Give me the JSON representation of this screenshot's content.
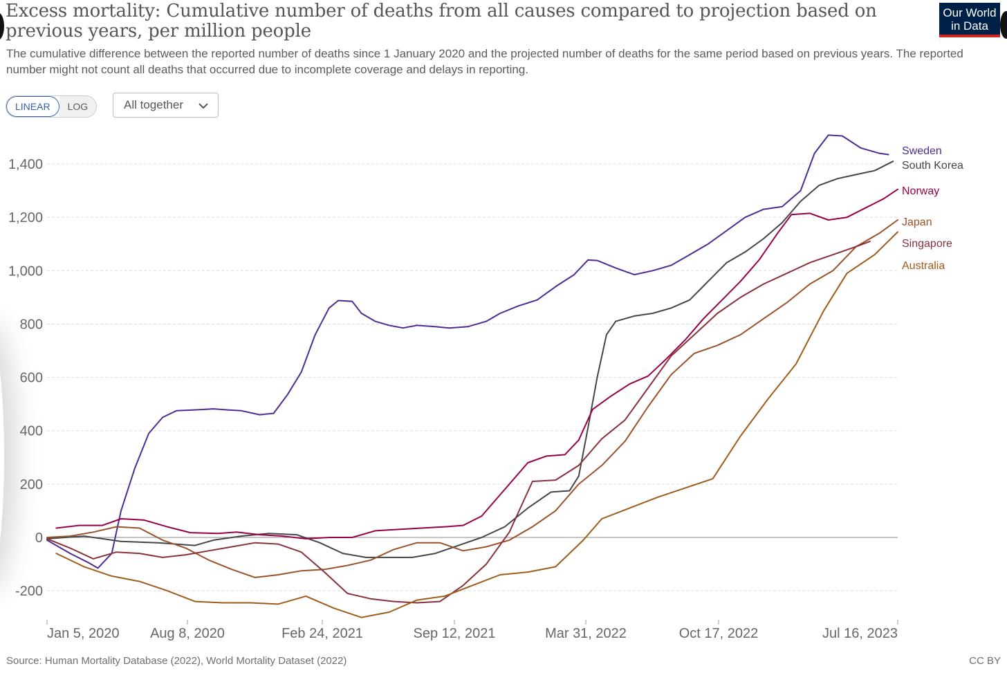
{
  "header": {
    "title": "Excess mortality: Cumulative number of deaths from all causes compared to projection based on previous years, per million people",
    "subtitle": "The cumulative difference between the reported number of deaths since 1 January 2020 and the projected number of deaths for the same period based on previous years. The reported number might not count all deaths that occurred due to incomplete coverage and delays in reporting.",
    "logo_text": "Our World in Data",
    "logo_colors": {
      "background": "#002147",
      "stripe": "#ce261e"
    }
  },
  "controls": {
    "scale_options": [
      "LINEAR",
      "LOG"
    ],
    "scale_selected": "LINEAR",
    "dropdown_label": "All together"
  },
  "footer": {
    "source": "Source: Human Mortality Database (2022), World Mortality Dataset (2022)",
    "license": "CC BY"
  },
  "chart_data": {
    "type": "line",
    "title": "Excess mortality: Cumulative number of deaths from all causes compared to projection based on previous years, per million people",
    "xlabel": "",
    "ylabel": "",
    "x_axis": "date",
    "x_ticks": [
      "Jan 5, 2020",
      "Aug 8, 2020",
      "Feb 24, 2021",
      "Sep 12, 2021",
      "Mar 31, 2022",
      "Oct 17, 2022",
      "Jul 16, 2023"
    ],
    "x_range": [
      "2020-01-05",
      "2023-07-16"
    ],
    "y_ticks": [
      -200,
      0,
      200,
      400,
      600,
      800,
      1000,
      1200,
      1400
    ],
    "ylim": [
      -300,
      1520
    ],
    "grid": "horizontal dashed",
    "legend": "line end labels, right",
    "series": [
      {
        "name": "Sweden",
        "color": "#4c2c92",
        "points": [
          [
            "2020-01-05",
            -10
          ],
          [
            "2020-02-09",
            -60
          ],
          [
            "2020-03-08",
            -95
          ],
          [
            "2020-03-22",
            -115
          ],
          [
            "2020-04-12",
            -60
          ],
          [
            "2020-04-26",
            100
          ],
          [
            "2020-05-17",
            260
          ],
          [
            "2020-06-07",
            390
          ],
          [
            "2020-06-28",
            450
          ],
          [
            "2020-07-19",
            475
          ],
          [
            "2020-08-16",
            478
          ],
          [
            "2020-09-13",
            482
          ],
          [
            "2020-10-04",
            478
          ],
          [
            "2020-10-25",
            475
          ],
          [
            "2020-11-22",
            460
          ],
          [
            "2020-12-13",
            465
          ],
          [
            "2021-01-03",
            535
          ],
          [
            "2021-01-24",
            620
          ],
          [
            "2021-02-14",
            760
          ],
          [
            "2021-03-07",
            860
          ],
          [
            "2021-03-21",
            888
          ],
          [
            "2021-04-11",
            885
          ],
          [
            "2021-04-25",
            840
          ],
          [
            "2021-05-16",
            810
          ],
          [
            "2021-06-06",
            795
          ],
          [
            "2021-06-27",
            785
          ],
          [
            "2021-07-18",
            795
          ],
          [
            "2021-08-15",
            790
          ],
          [
            "2021-09-05",
            785
          ],
          [
            "2021-10-03",
            790
          ],
          [
            "2021-10-31",
            810
          ],
          [
            "2021-11-21",
            840
          ],
          [
            "2021-12-19",
            868
          ],
          [
            "2022-01-16",
            890
          ],
          [
            "2022-02-13",
            940
          ],
          [
            "2022-03-13",
            985
          ],
          [
            "2022-04-03",
            1040
          ],
          [
            "2022-04-17",
            1038
          ],
          [
            "2022-05-15",
            1010
          ],
          [
            "2022-06-12",
            985
          ],
          [
            "2022-07-10",
            1000
          ],
          [
            "2022-08-07",
            1020
          ],
          [
            "2022-09-04",
            1060
          ],
          [
            "2022-10-02",
            1100
          ],
          [
            "2022-10-30",
            1150
          ],
          [
            "2022-11-27",
            1200
          ],
          [
            "2022-12-25",
            1230
          ],
          [
            "2023-01-22",
            1240
          ],
          [
            "2023-02-19",
            1300
          ],
          [
            "2023-03-12",
            1440
          ],
          [
            "2023-04-02",
            1508
          ],
          [
            "2023-04-23",
            1505
          ],
          [
            "2023-05-21",
            1460
          ],
          [
            "2023-06-18",
            1440
          ],
          [
            "2023-07-02",
            1435
          ]
        ]
      },
      {
        "name": "South Korea",
        "color": "#444444",
        "points": [
          [
            "2020-01-05",
            -5
          ],
          [
            "2020-03-01",
            5
          ],
          [
            "2020-04-26",
            -15
          ],
          [
            "2020-06-21",
            -20
          ],
          [
            "2020-08-16",
            -30
          ],
          [
            "2020-09-13",
            -10
          ],
          [
            "2020-10-25",
            5
          ],
          [
            "2020-12-06",
            15
          ],
          [
            "2021-01-17",
            10
          ],
          [
            "2021-02-21",
            -20
          ],
          [
            "2021-03-28",
            -60
          ],
          [
            "2021-05-02",
            -75
          ],
          [
            "2021-06-06",
            -75
          ],
          [
            "2021-07-11",
            -75
          ],
          [
            "2021-08-15",
            -60
          ],
          [
            "2021-09-19",
            -30
          ],
          [
            "2021-10-24",
            0
          ],
          [
            "2021-11-28",
            40
          ],
          [
            "2022-01-02",
            110
          ],
          [
            "2022-02-06",
            170
          ],
          [
            "2022-03-06",
            175
          ],
          [
            "2022-03-20",
            230
          ],
          [
            "2022-04-03",
            410
          ],
          [
            "2022-04-17",
            600
          ],
          [
            "2022-05-01",
            760
          ],
          [
            "2022-05-15",
            810
          ],
          [
            "2022-06-12",
            830
          ],
          [
            "2022-07-10",
            840
          ],
          [
            "2022-08-07",
            860
          ],
          [
            "2022-09-04",
            890
          ],
          [
            "2022-10-02",
            960
          ],
          [
            "2022-10-30",
            1030
          ],
          [
            "2022-11-27",
            1070
          ],
          [
            "2022-12-25",
            1120
          ],
          [
            "2023-01-22",
            1180
          ],
          [
            "2023-02-19",
            1260
          ],
          [
            "2023-03-19",
            1320
          ],
          [
            "2023-04-16",
            1345
          ],
          [
            "2023-05-14",
            1360
          ],
          [
            "2023-06-11",
            1375
          ],
          [
            "2023-07-09",
            1410
          ]
        ]
      },
      {
        "name": "Norway",
        "color": "#970046",
        "points": [
          [
            "2020-01-19",
            35
          ],
          [
            "2020-02-23",
            45
          ],
          [
            "2020-03-29",
            45
          ],
          [
            "2020-04-26",
            70
          ],
          [
            "2020-05-31",
            65
          ],
          [
            "2020-07-05",
            40
          ],
          [
            "2020-08-09",
            18
          ],
          [
            "2020-09-20",
            15
          ],
          [
            "2020-10-18",
            20
          ],
          [
            "2020-11-22",
            10
          ],
          [
            "2020-12-27",
            5
          ],
          [
            "2021-01-31",
            -5
          ],
          [
            "2021-03-07",
            0
          ],
          [
            "2021-04-11",
            0
          ],
          [
            "2021-05-16",
            25
          ],
          [
            "2021-06-20",
            30
          ],
          [
            "2021-07-25",
            35
          ],
          [
            "2021-08-29",
            40
          ],
          [
            "2021-09-26",
            45
          ],
          [
            "2021-10-24",
            80
          ],
          [
            "2021-11-28",
            180
          ],
          [
            "2022-01-02",
            280
          ],
          [
            "2022-01-30",
            305
          ],
          [
            "2022-02-27",
            310
          ],
          [
            "2022-03-20",
            365
          ],
          [
            "2022-04-10",
            480
          ],
          [
            "2022-05-08",
            530
          ],
          [
            "2022-06-05",
            575
          ],
          [
            "2022-07-03",
            605
          ],
          [
            "2022-07-31",
            670
          ],
          [
            "2022-08-28",
            740
          ],
          [
            "2022-09-25",
            820
          ],
          [
            "2022-10-23",
            890
          ],
          [
            "2022-11-20",
            960
          ],
          [
            "2022-12-18",
            1040
          ],
          [
            "2023-01-15",
            1140
          ],
          [
            "2023-02-05",
            1210
          ],
          [
            "2023-03-05",
            1215
          ],
          [
            "2023-04-02",
            1190
          ],
          [
            "2023-04-30",
            1200
          ],
          [
            "2023-05-28",
            1235
          ],
          [
            "2023-06-25",
            1270
          ],
          [
            "2023-07-16",
            1305
          ]
        ]
      },
      {
        "name": "Japan",
        "color": "#9a5129",
        "points": [
          [
            "2020-01-05",
            0
          ],
          [
            "2020-02-09",
            5
          ],
          [
            "2020-03-15",
            20
          ],
          [
            "2020-04-19",
            40
          ],
          [
            "2020-05-24",
            35
          ],
          [
            "2020-06-28",
            -10
          ],
          [
            "2020-08-02",
            -40
          ],
          [
            "2020-09-06",
            -85
          ],
          [
            "2020-10-11",
            -120
          ],
          [
            "2020-11-15",
            -150
          ],
          [
            "2020-12-20",
            -140
          ],
          [
            "2021-01-24",
            -125
          ],
          [
            "2021-02-28",
            -120
          ],
          [
            "2021-04-04",
            -105
          ],
          [
            "2021-05-09",
            -85
          ],
          [
            "2021-06-13",
            -45
          ],
          [
            "2021-07-18",
            -20
          ],
          [
            "2021-08-22",
            -20
          ],
          [
            "2021-09-26",
            -50
          ],
          [
            "2021-10-31",
            -35
          ],
          [
            "2021-12-05",
            -10
          ],
          [
            "2022-01-09",
            40
          ],
          [
            "2022-02-13",
            100
          ],
          [
            "2022-03-20",
            200
          ],
          [
            "2022-04-24",
            270
          ],
          [
            "2022-05-29",
            360
          ],
          [
            "2022-07-03",
            490
          ],
          [
            "2022-08-07",
            610
          ],
          [
            "2022-09-11",
            690
          ],
          [
            "2022-10-16",
            720
          ],
          [
            "2022-11-20",
            760
          ],
          [
            "2022-12-25",
            820
          ],
          [
            "2023-01-29",
            880
          ],
          [
            "2023-03-05",
            950
          ],
          [
            "2023-04-09",
            1000
          ],
          [
            "2023-05-14",
            1090
          ],
          [
            "2023-06-18",
            1140
          ],
          [
            "2023-07-16",
            1190
          ]
        ]
      },
      {
        "name": "Singapore",
        "color": "#883039",
        "points": [
          [
            "2020-01-05",
            -5
          ],
          [
            "2020-02-09",
            -40
          ],
          [
            "2020-03-15",
            -80
          ],
          [
            "2020-04-19",
            -55
          ],
          [
            "2020-05-24",
            -60
          ],
          [
            "2020-06-28",
            -75
          ],
          [
            "2020-08-02",
            -65
          ],
          [
            "2020-09-06",
            -50
          ],
          [
            "2020-10-11",
            -35
          ],
          [
            "2020-11-15",
            -20
          ],
          [
            "2020-12-20",
            -25
          ],
          [
            "2021-01-24",
            -55
          ],
          [
            "2021-02-28",
            -130
          ],
          [
            "2021-04-04",
            -210
          ],
          [
            "2021-05-09",
            -230
          ],
          [
            "2021-06-13",
            -240
          ],
          [
            "2021-07-18",
            -245
          ],
          [
            "2021-08-22",
            -240
          ],
          [
            "2021-09-26",
            -180
          ],
          [
            "2021-10-31",
            -100
          ],
          [
            "2021-12-05",
            20
          ],
          [
            "2022-01-09",
            210
          ],
          [
            "2022-02-13",
            215
          ],
          [
            "2022-03-20",
            270
          ],
          [
            "2022-04-24",
            370
          ],
          [
            "2022-05-29",
            440
          ],
          [
            "2022-07-03",
            560
          ],
          [
            "2022-08-07",
            680
          ],
          [
            "2022-09-11",
            760
          ],
          [
            "2022-10-16",
            840
          ],
          [
            "2022-11-20",
            900
          ],
          [
            "2022-12-25",
            950
          ],
          [
            "2023-01-29",
            990
          ],
          [
            "2023-03-05",
            1030
          ],
          [
            "2023-04-09",
            1060
          ],
          [
            "2023-05-14",
            1090
          ],
          [
            "2023-06-04",
            1110
          ]
        ]
      },
      {
        "name": "Australia",
        "color": "#9f5b19",
        "points": [
          [
            "2020-01-19",
            -60
          ],
          [
            "2020-03-01",
            -110
          ],
          [
            "2020-04-12",
            -145
          ],
          [
            "2020-05-24",
            -165
          ],
          [
            "2020-07-05",
            -200
          ],
          [
            "2020-08-16",
            -240
          ],
          [
            "2020-09-27",
            -245
          ],
          [
            "2020-11-08",
            -245
          ],
          [
            "2020-12-20",
            -250
          ],
          [
            "2021-01-31",
            -220
          ],
          [
            "2021-03-14",
            -265
          ],
          [
            "2021-04-25",
            -300
          ],
          [
            "2021-06-06",
            -280
          ],
          [
            "2021-07-18",
            -235
          ],
          [
            "2021-08-29",
            -220
          ],
          [
            "2021-10-10",
            -180
          ],
          [
            "2021-11-21",
            -140
          ],
          [
            "2022-01-02",
            -130
          ],
          [
            "2022-02-13",
            -110
          ],
          [
            "2022-03-27",
            -10
          ],
          [
            "2022-04-24",
            70
          ],
          [
            "2022-06-05",
            110
          ],
          [
            "2022-07-17",
            150
          ],
          [
            "2022-08-28",
            185
          ],
          [
            "2022-10-09",
            220
          ],
          [
            "2022-11-20",
            380
          ],
          [
            "2023-01-01",
            520
          ],
          [
            "2023-02-12",
            650
          ],
          [
            "2023-03-26",
            850
          ],
          [
            "2023-04-30",
            990
          ],
          [
            "2023-06-11",
            1060
          ],
          [
            "2023-07-16",
            1145
          ]
        ]
      }
    ],
    "end_labels": [
      "Sweden",
      "South Korea",
      "Norway",
      "Japan",
      "Singapore",
      "Australia"
    ]
  }
}
